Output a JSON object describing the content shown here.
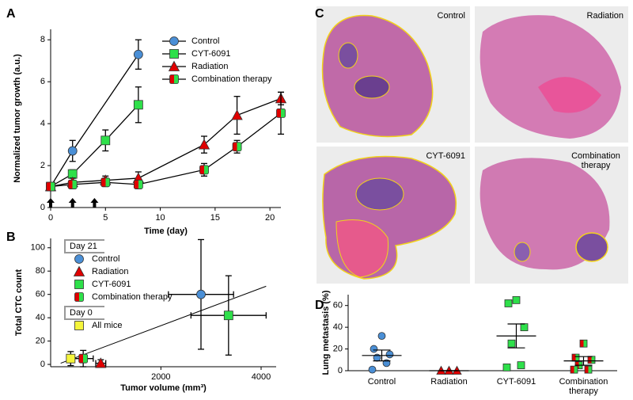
{
  "chart_data": [
    {
      "type": "line",
      "panel": "A",
      "ylabel": "Normalized tumor growth (a.u.)",
      "xlabel": "Time (day)",
      "xlim": [
        0,
        21
      ],
      "ylim": [
        0,
        8.5
      ],
      "xticks": [
        0,
        5,
        10,
        15,
        20
      ],
      "yticks": [
        0,
        2,
        4,
        6,
        8
      ],
      "treatment_days": [
        0,
        2,
        4
      ],
      "legend": "upper right",
      "series": [
        {
          "name": "Control",
          "color": "#4a8fd6",
          "marker": "circle",
          "x": [
            0,
            2,
            8
          ],
          "values": [
            1.0,
            2.7,
            7.3
          ],
          "errors": [
            0,
            0.5,
            0.7
          ]
        },
        {
          "name": "CYT-6091",
          "color": "#2ee04a",
          "marker": "square",
          "x": [
            0,
            2,
            5,
            8
          ],
          "values": [
            1.0,
            1.6,
            3.2,
            4.9
          ],
          "errors": [
            0,
            0.2,
            0.5,
            0.85
          ]
        },
        {
          "name": "Radiation",
          "color": "#e00000",
          "marker": "triangle",
          "x": [
            0,
            2,
            5,
            8,
            14,
            17,
            21
          ],
          "values": [
            1.0,
            1.2,
            1.3,
            1.4,
            3.0,
            4.4,
            5.2
          ],
          "errors": [
            0,
            0.2,
            0.2,
            0.3,
            0.4,
            0.9,
            0.3
          ]
        },
        {
          "name": "Combination therapy",
          "color": "#e00000",
          "color2": "#2ee04a",
          "marker": "half",
          "x": [
            0,
            2,
            5,
            8,
            14,
            17,
            21
          ],
          "values": [
            1.0,
            1.1,
            1.2,
            1.1,
            1.8,
            2.9,
            4.5
          ],
          "errors": [
            0,
            0.2,
            0.2,
            0.2,
            0.3,
            0.3,
            1.0
          ]
        }
      ]
    },
    {
      "type": "scatter",
      "panel": "B",
      "ylabel": "Total CTC count",
      "xlabel": "Tumor volume (mm³)",
      "xlim": [
        -200,
        4300
      ],
      "ylim": [
        -2,
        108
      ],
      "xticks": [
        2000,
        4000
      ],
      "yticks": [
        0,
        20,
        40,
        60,
        80,
        100
      ],
      "groups": [
        "Day 21",
        "Day 0"
      ],
      "series": [
        {
          "name": "Control",
          "group": 0,
          "color": "#4a8fd6",
          "marker": "circle",
          "x": [
            2800
          ],
          "values": [
            60
          ],
          "x_errors": [
            650
          ],
          "errors": [
            47
          ]
        },
        {
          "name": "Radiation",
          "group": 0,
          "color": "#e00000",
          "marker": "triangle",
          "x": [
            800
          ],
          "values": [
            1
          ],
          "x_errors": [
            100
          ],
          "errors": [
            3
          ]
        },
        {
          "name": "CYT-6091",
          "group": 0,
          "color": "#2ee04a",
          "marker": "square",
          "x": [
            3350
          ],
          "values": [
            42
          ],
          "x_errors": [
            750
          ],
          "errors": [
            34
          ]
        },
        {
          "name": "Combination therapy",
          "group": 0,
          "color": "#e00000",
          "color2": "#2ee04a",
          "marker": "half",
          "x": [
            450
          ],
          "values": [
            5
          ],
          "x_errors": [
            200
          ],
          "errors": [
            7
          ]
        },
        {
          "name": "All mice",
          "group": 1,
          "color": "#f5f53b",
          "marker": "square",
          "x": [
            200
          ],
          "values": [
            5
          ],
          "x_errors": [
            80
          ],
          "errors": [
            6
          ]
        }
      ],
      "fit": {
        "x": [
          0,
          4100
        ],
        "values": [
          1,
          67
        ]
      }
    },
    {
      "type": "dot",
      "panel": "D",
      "ylabel": "Lung metastasis (%)",
      "ylim": [
        0,
        70
      ],
      "yticks": [
        0,
        20,
        40,
        60
      ],
      "categories": [
        "Control",
        "Radiation",
        "CYT-6091",
        "Combination therapy"
      ],
      "colors": [
        [
          "#4a8fd6"
        ],
        [
          "#e00000"
        ],
        [
          "#2ee04a"
        ],
        [
          "#e00000",
          "#2ee04a"
        ]
      ],
      "points": [
        [
          32,
          20,
          15,
          12,
          7,
          1
        ],
        [
          0,
          0,
          0
        ],
        [
          65,
          62,
          40,
          25,
          5,
          3
        ],
        [
          25,
          12,
          10,
          5,
          1,
          1
        ]
      ],
      "means": [
        14,
        0,
        32,
        9
      ],
      "errors": [
        5,
        0,
        11,
        4
      ]
    }
  ],
  "images": {
    "panel": "C",
    "labels": [
      "Control",
      "Radiation",
      "CYT-6091",
      "Combination therapy"
    ]
  }
}
